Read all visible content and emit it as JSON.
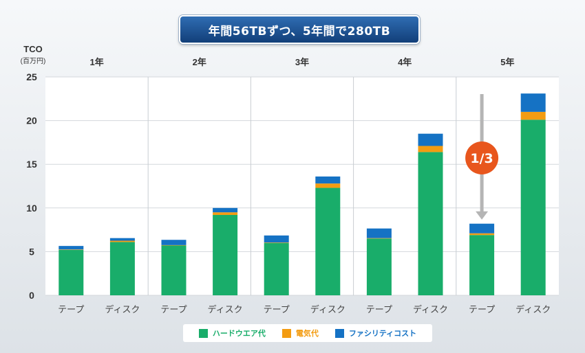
{
  "banner": "年間56TBずつ、5年間で280TB",
  "y_axis": {
    "unit_line1": "TCO",
    "unit_line2": "(百万円)"
  },
  "callout": "1/3",
  "colors": {
    "hardware": "#19ad6a",
    "power": "#f39c12",
    "facility": "#1572c4",
    "arrow": "#b5b5b5",
    "callout": "#e8561d"
  },
  "legend": [
    {
      "label": "ハードウエア代",
      "color": "#19ad6a"
    },
    {
      "label": "電気代",
      "color": "#f39c12"
    },
    {
      "label": "ファシリティコスト",
      "color": "#1572c4"
    }
  ],
  "chart_data": {
    "type": "bar",
    "stacked": true,
    "groups": [
      "1年",
      "2年",
      "3年",
      "4年",
      "5年"
    ],
    "categories": [
      "テープ",
      "ディスク",
      "テープ",
      "ディスク",
      "テープ",
      "ディスク",
      "テープ",
      "ディスク",
      "テープ",
      "ディスク"
    ],
    "series": [
      {
        "name": "ハードウエア代",
        "values": [
          5.2,
          6.1,
          5.7,
          9.2,
          6.0,
          12.3,
          6.5,
          16.4,
          6.9,
          20.1
        ]
      },
      {
        "name": "電気代",
        "values": [
          0.05,
          0.15,
          0.05,
          0.3,
          0.05,
          0.5,
          0.05,
          0.7,
          0.2,
          0.9
        ]
      },
      {
        "name": "ファシリティコスト",
        "values": [
          0.4,
          0.3,
          0.6,
          0.5,
          0.8,
          0.8,
          1.1,
          1.4,
          1.1,
          2.1
        ]
      }
    ],
    "yticks": [
      0,
      5,
      10,
      15,
      20,
      25
    ],
    "ylim": [
      0,
      25
    ],
    "grid": true,
    "legend_position": "bottom"
  }
}
